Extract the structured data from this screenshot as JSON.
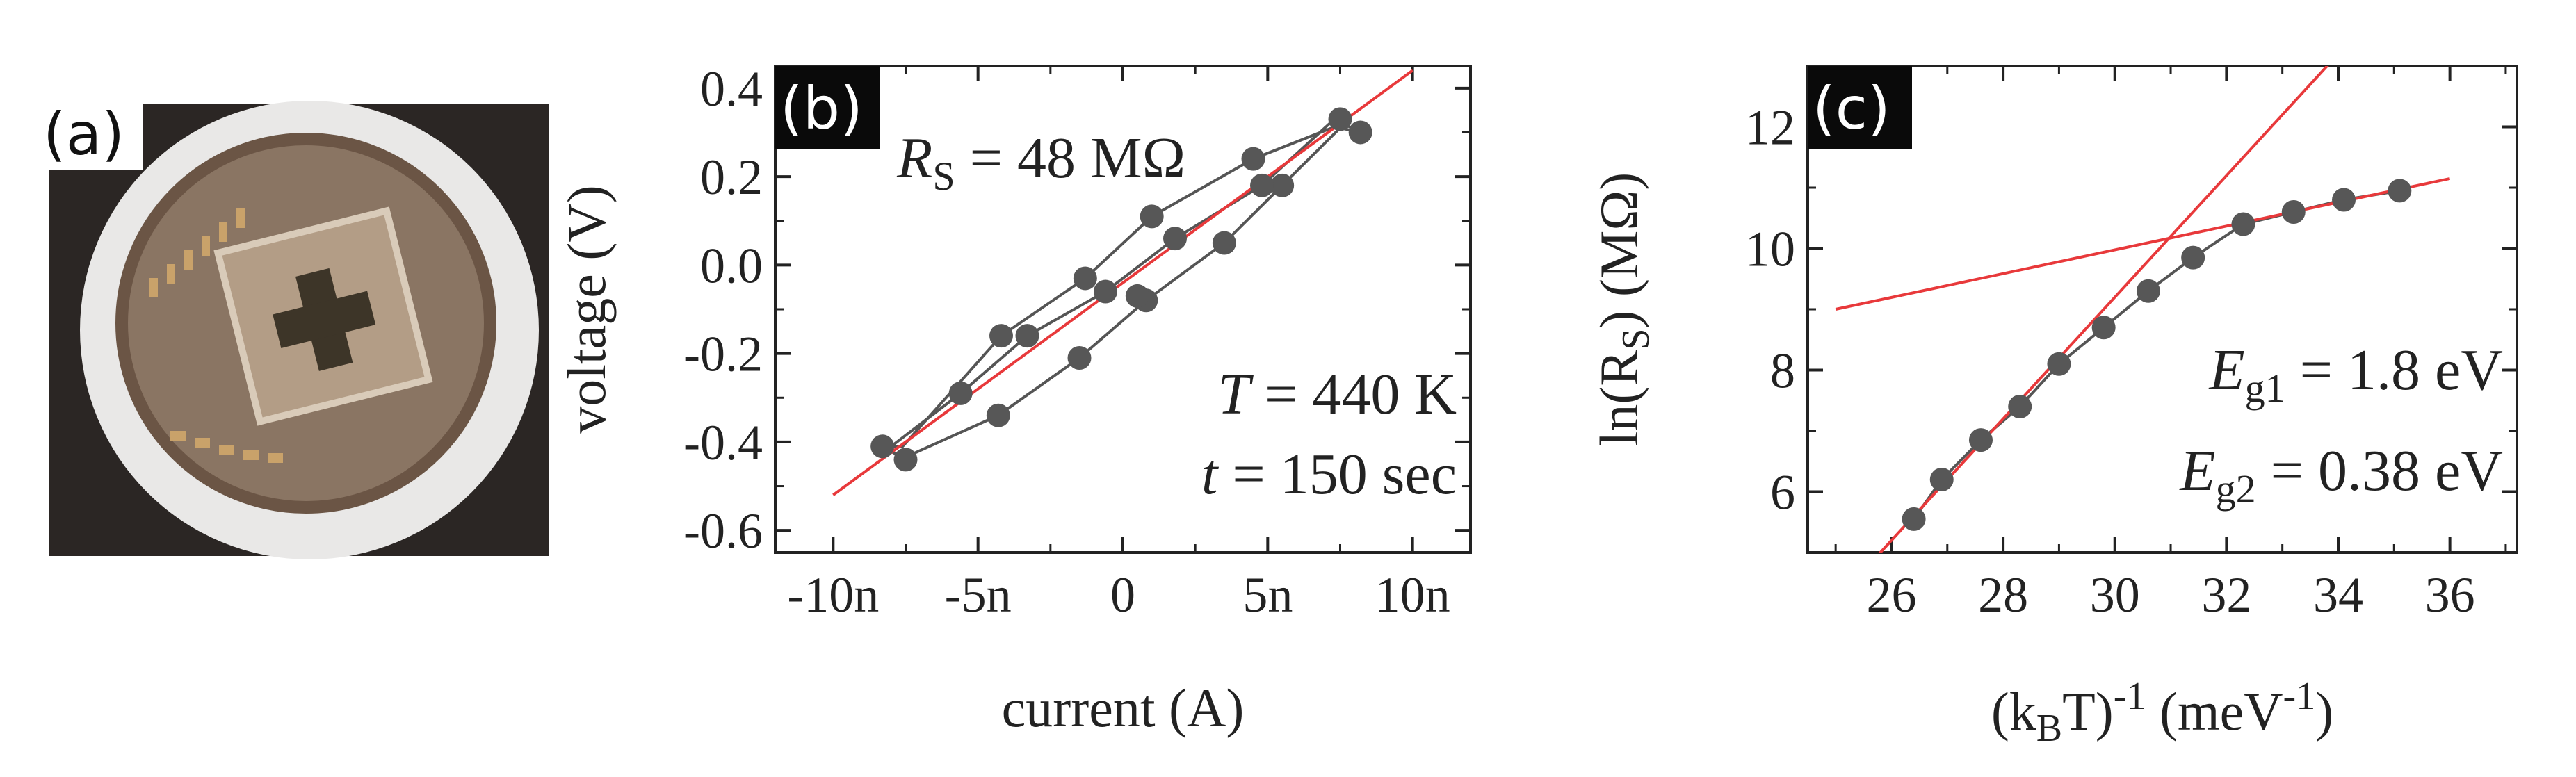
{
  "panel_labels": {
    "a": "(a)",
    "b": "(b)",
    "c": "(c)"
  },
  "photo": {
    "label": "device-photo"
  },
  "chart_data": [
    {
      "panel": "b",
      "type": "line",
      "xlabel": "current (A)",
      "ylabel": "voltage (V)",
      "xlim": [
        -12,
        12
      ],
      "ylim": [
        -0.65,
        0.45
      ],
      "xticks": [
        -10,
        -5,
        0,
        5,
        10
      ],
      "xtick_labels": [
        "-10n",
        "-5n",
        "0",
        "5n",
        "10n"
      ],
      "yticks": [
        -0.6,
        -0.4,
        -0.2,
        0.0,
        0.2,
        0.4
      ],
      "ytick_labels": [
        "-0.6",
        "-0.4",
        "-0.2",
        "0.0",
        "0.2",
        "0.4"
      ],
      "annotations": {
        "rs_var": "R",
        "rs_sub": "S",
        "rs_eq": " = 48 MΩ",
        "t_var": "T",
        "t_eq": " = 440 K",
        "time_var": "t",
        "time_eq": " = 150 sec"
      },
      "series": [
        {
          "name": "I-V loop",
          "color": "#555555",
          "x": [
            -8.3,
            -7.5,
            -7.7,
            -4.3,
            -1.5,
            0.8,
            3.5,
            5.5,
            7.5,
            8.2,
            7.6,
            4.5,
            1.0,
            -1.3,
            -4.2,
            -7.6,
            -8.0,
            -5.6,
            -3.3,
            -0.6,
            1.8,
            4.8,
            7.3,
            8.2
          ],
          "y": [
            -0.41,
            -0.44,
            -0.44,
            -0.34,
            -0.21,
            -0.08,
            0.05,
            0.18,
            0.31,
            0.3,
            0.32,
            0.24,
            0.11,
            -0.03,
            -0.16,
            -0.41,
            -0.41,
            -0.29,
            -0.16,
            -0.06,
            0.06,
            0.18,
            0.33,
            0.3
          ],
          "marked_points": [
            [
              -8.3,
              -0.41
            ],
            [
              -7.5,
              -0.44
            ],
            [
              -4.3,
              -0.34
            ],
            [
              -1.5,
              -0.21
            ],
            [
              0.8,
              -0.08
            ],
            [
              1.8,
              0.06
            ],
            [
              3.5,
              0.05
            ],
            [
              5.5,
              0.18
            ],
            [
              7.5,
              0.33
            ],
            [
              8.2,
              0.3
            ],
            [
              4.5,
              0.24
            ],
            [
              1.0,
              0.11
            ],
            [
              -1.3,
              -0.03
            ],
            [
              -4.2,
              -0.16
            ],
            [
              -5.6,
              -0.29
            ],
            [
              -3.3,
              -0.16
            ],
            [
              -0.6,
              -0.06
            ],
            [
              4.8,
              0.18
            ],
            [
              0.5,
              -0.07
            ]
          ]
        },
        {
          "name": "linear fit",
          "color": "#e8393b",
          "x": [
            -10,
            10
          ],
          "y": [
            -0.52,
            0.44
          ]
        }
      ]
    },
    {
      "panel": "c",
      "type": "scatter",
      "xlabel": "(kBT)-1 (meV-1)",
      "ylabel": "ln(RS) (MΩ)",
      "xlim": [
        24.5,
        37.2
      ],
      "ylim": [
        5.0,
        13.0
      ],
      "xticks": [
        26,
        28,
        30,
        32,
        34,
        36
      ],
      "xtick_labels": [
        "26",
        "28",
        "30",
        "32",
        "34",
        "36"
      ],
      "yticks": [
        6,
        8,
        10,
        12
      ],
      "ytick_labels": [
        "6",
        "8",
        "10",
        "12"
      ],
      "annotations": {
        "eg1_var": "E",
        "eg1_sub": "g1",
        "eg1_eq": " = 1.8 eV",
        "eg2_var": "E",
        "eg2_sub": "g2",
        "eg2_eq": " = 0.38 eV"
      },
      "series": [
        {
          "name": "data",
          "color": "#555555",
          "x": [
            26.4,
            26.9,
            27.6,
            28.3,
            29.0,
            29.8,
            30.6,
            31.4,
            32.3,
            33.2,
            34.1,
            35.1
          ],
          "y": [
            5.55,
            6.2,
            6.85,
            7.4,
            8.1,
            8.7,
            9.3,
            9.85,
            10.4,
            10.6,
            10.8,
            10.95
          ]
        },
        {
          "name": "fit Eg1",
          "color": "#e8393b",
          "x": [
            25.7,
            33.9
          ],
          "y": [
            4.9,
            13.1
          ]
        },
        {
          "name": "fit Eg2",
          "color": "#e8393b",
          "x": [
            25.0,
            36.0
          ],
          "y": [
            9.0,
            11.15
          ]
        }
      ]
    }
  ]
}
